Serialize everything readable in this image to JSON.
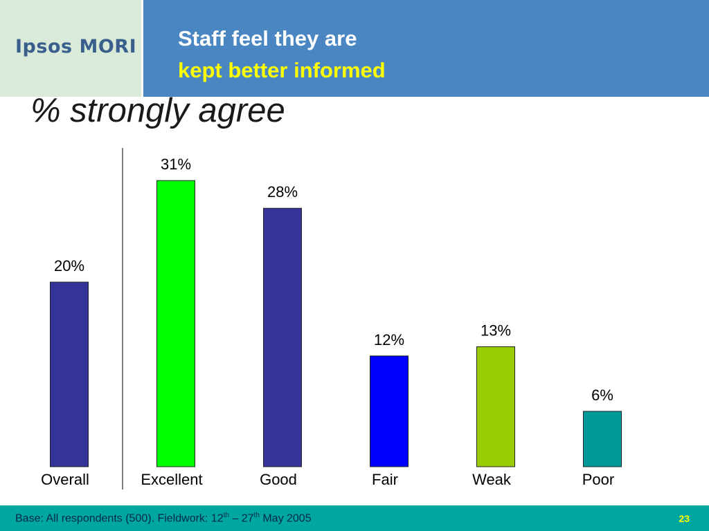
{
  "logo": {
    "text": "Ipsos MORI"
  },
  "header": {
    "title_line1": "Staff feel they are",
    "title_line2": "kept better informed"
  },
  "subtitle": "% strongly agree",
  "chart_data": {
    "type": "bar",
    "categories": [
      "Overall",
      "Excellent",
      "Good",
      "Fair",
      "Weak",
      "Poor"
    ],
    "values": [
      20,
      31,
      28,
      12,
      13,
      6
    ],
    "value_labels": [
      "20%",
      "31%",
      "28%",
      "12%",
      "13%",
      "6%"
    ],
    "colors": [
      "#333399",
      "#00ff00",
      "#333399",
      "#0000ff",
      "#99cc00",
      "#009999"
    ],
    "ylim": [
      0,
      35
    ],
    "grid": false,
    "separator_after_category": "Overall"
  },
  "footer": {
    "base_text": "Base: All respondents (500). Fieldwork: 12",
    "sup1": "th",
    "dash": " – 27",
    "sup2": "th",
    "tail": " May 2005",
    "page_number": "23"
  },
  "colors": {
    "header": "#4a86c2",
    "footer": "#00a6a0",
    "title_accent": "#ffff00"
  }
}
